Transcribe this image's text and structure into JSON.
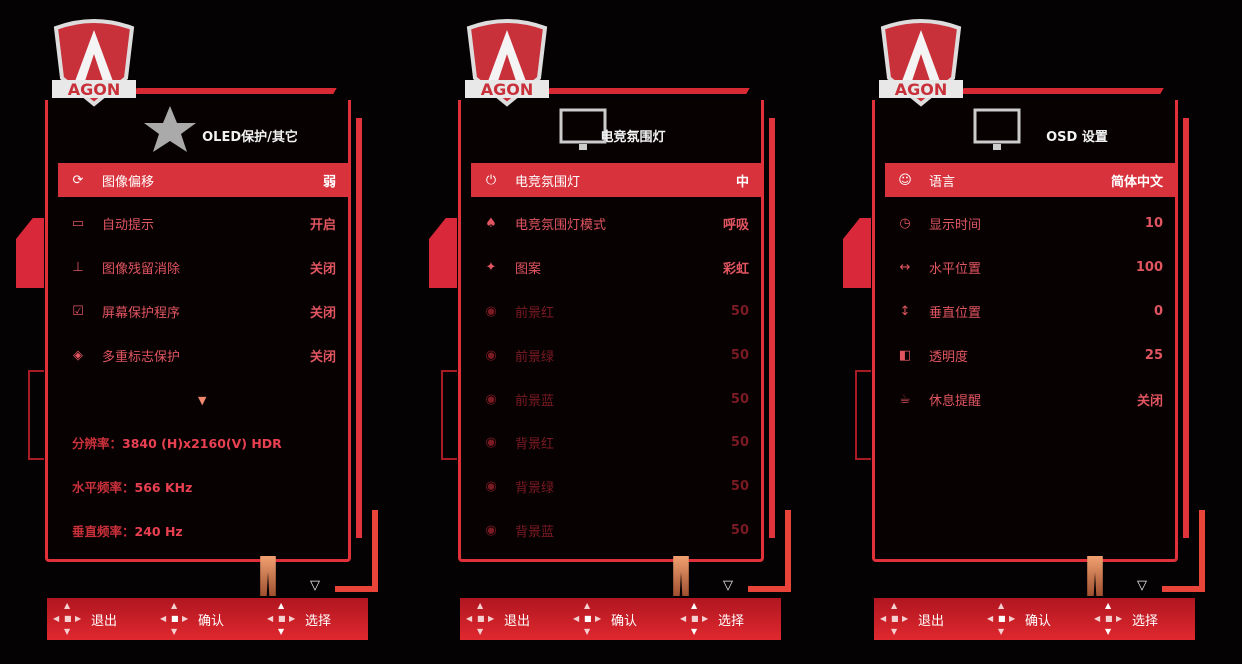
{
  "colors": {
    "accent": "#d8333d",
    "text": "#e85a62",
    "dim": "#8a1a24",
    "selected_text": "#ffffff"
  },
  "logo_text": "AGON",
  "panels": [
    {
      "title": "OLED保护/其它",
      "title_icon": "star-icon",
      "items": [
        {
          "icon": "refresh-icon",
          "glyph": "⟳",
          "label": "图像偏移",
          "value": "弱",
          "selected": true
        },
        {
          "icon": "monitor-notice-icon",
          "glyph": "▭",
          "label": "自动提示",
          "value": "开启"
        },
        {
          "icon": "pixel-clean-icon",
          "glyph": "⊥",
          "label": "图像残留消除",
          "value": "关闭"
        },
        {
          "icon": "screensaver-icon",
          "glyph": "☑",
          "label": "屏幕保护程序",
          "value": "关闭"
        },
        {
          "icon": "multi-logo-icon",
          "glyph": "◈",
          "label": "多重标志保护",
          "value": "关闭"
        }
      ],
      "more_arrow": "▼",
      "info": [
        {
          "label": "分辨率：",
          "value": "3840 (H)x2160(V)  HDR"
        },
        {
          "label": "水平频率：",
          "value": "566 KHz"
        },
        {
          "label": "垂直频率：",
          "value": "240 Hz"
        }
      ]
    },
    {
      "title": "电竞氛围灯",
      "title_icon": "monitor-icon",
      "items": [
        {
          "icon": "power-icon",
          "glyph": "⏻",
          "label": "电竞氛围灯",
          "value": "中",
          "selected": true
        },
        {
          "icon": "rocket-icon",
          "glyph": "♠",
          "label": "电竞氛围灯模式",
          "value": "呼吸"
        },
        {
          "icon": "sparkle-icon",
          "glyph": "✦",
          "label": "图案",
          "value": "彩虹"
        },
        {
          "icon": "color-dot-icon",
          "glyph": "◉",
          "label": "前景红",
          "value": "50",
          "disabled": true
        },
        {
          "icon": "color-dot-icon",
          "glyph": "◉",
          "label": "前景绿",
          "value": "50",
          "disabled": true
        },
        {
          "icon": "color-dot-icon",
          "glyph": "◉",
          "label": "前景蓝",
          "value": "50",
          "disabled": true
        },
        {
          "icon": "color-dot-icon",
          "glyph": "◉",
          "label": "背景红",
          "value": "50",
          "disabled": true
        },
        {
          "icon": "color-dot-icon",
          "glyph": "◉",
          "label": "背景绿",
          "value": "50",
          "disabled": true
        },
        {
          "icon": "color-dot-icon",
          "glyph": "◉",
          "label": "背景蓝",
          "value": "50",
          "disabled": true
        }
      ]
    },
    {
      "title": "OSD 设置",
      "title_icon": "osd-window-icon",
      "items": [
        {
          "icon": "language-icon",
          "glyph": "☺",
          "label": "语言",
          "value": "简体中文",
          "selected": true
        },
        {
          "icon": "timer-icon",
          "glyph": "◷",
          "label": "显示时间",
          "value": "10"
        },
        {
          "icon": "horizontal-arrows-icon",
          "glyph": "↔",
          "label": "水平位置",
          "value": "100"
        },
        {
          "icon": "vertical-arrows-icon",
          "glyph": "↕",
          "label": "垂直位置",
          "value": "0"
        },
        {
          "icon": "transparency-icon",
          "glyph": "◧",
          "label": "透明度",
          "value": "25"
        },
        {
          "icon": "coffee-icon",
          "glyph": "☕",
          "label": "休息提醒",
          "value": "关闭"
        }
      ]
    }
  ],
  "footer": [
    {
      "label": "退出",
      "action": "exit"
    },
    {
      "label": "确认",
      "action": "confirm"
    },
    {
      "label": "选择",
      "action": "select"
    }
  ]
}
